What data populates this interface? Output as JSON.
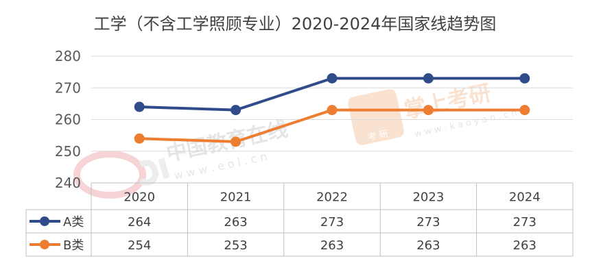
{
  "chart_data": {
    "type": "line",
    "title": "工学（不含工学照顾专业）2020-2024年国家线趋势图",
    "categories": [
      "2020",
      "2021",
      "2022",
      "2023",
      "2024"
    ],
    "ylim": [
      240,
      280
    ],
    "yticks": [
      "240",
      "250",
      "260",
      "270",
      "280"
    ],
    "grid": true,
    "legend": "table-left",
    "series": [
      {
        "name": "A类",
        "values": [
          264,
          263,
          273,
          273,
          273
        ],
        "labels": [
          "264",
          "263",
          "273",
          "273",
          "273"
        ],
        "color": "#2f4b8a"
      },
      {
        "name": "B类",
        "values": [
          254,
          253,
          263,
          263,
          263
        ],
        "labels": [
          "254",
          "253",
          "263",
          "263",
          "263"
        ],
        "color": "#ed7d31"
      }
    ]
  },
  "watermarks": {
    "eol_text": "中国教育在线",
    "eol_url": "w w w . e o l . c n",
    "zs_text": "掌上考研",
    "zs_url": "w w w . k a o y a n . c n",
    "zs_badge": "考 研"
  }
}
